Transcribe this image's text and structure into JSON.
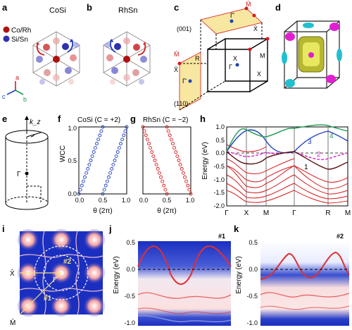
{
  "figure": {
    "panels": {
      "a": {
        "letter": "a",
        "material": "CoSi",
        "legend": [
          "Co/Rh",
          "Si/Sn"
        ],
        "axes": [
          "a",
          "b",
          "c"
        ]
      },
      "b": {
        "letter": "b",
        "material": "RhSn"
      },
      "c": {
        "letter": "c",
        "surface_top": "(001)",
        "surface_side": "(110)",
        "points_top": [
          "Γ̄",
          "X̄",
          "M̄"
        ],
        "points_side": [
          "M̄",
          "X̄",
          "Γ̄"
        ],
        "points_bulk": [
          "R",
          "X",
          "M",
          "X",
          "Γ"
        ]
      },
      "d": {
        "letter": "d"
      },
      "e": {
        "letter": "e",
        "axis_label": "k_z",
        "point": "Γ"
      },
      "f": {
        "letter": "f",
        "title": "CoSi (C = +2)",
        "ylabel": "WCC",
        "xlabel": "θ (2π)",
        "yticks": [
          "1.0",
          "0.5",
          "0.0"
        ],
        "xticks": [
          "0.0",
          "0.5",
          "1.0"
        ]
      },
      "g": {
        "letter": "g",
        "title": "RhSn (C = −2)",
        "xlabel": "θ (2π)",
        "xticks": [
          "0.0",
          "0.5",
          "1.0"
        ]
      },
      "h": {
        "letter": "h",
        "ylabel": "Energy (eV)",
        "yticks": [
          "1.0",
          "0.5",
          "0.0",
          "-0.5",
          "-1.0",
          "-1.5",
          "-2.0"
        ],
        "kpoints": [
          "Γ",
          "X",
          "M",
          "Γ",
          "R",
          "M"
        ],
        "band_labels": [
          "1",
          "2",
          "3",
          "4"
        ]
      },
      "i": {
        "letter": "i",
        "points": [
          "Γ̄",
          "X̄",
          "M̄"
        ],
        "markers": [
          "#1",
          "#2"
        ]
      },
      "j": {
        "letter": "j",
        "marker": "#1",
        "ylabel": "Energy (eV)",
        "yticks": [
          "0.5",
          "0.0",
          "-0.5",
          "-1.0"
        ]
      },
      "k": {
        "letter": "k",
        "marker": "#2",
        "ylabel": "Energy (eV)",
        "yticks": [
          "0.5",
          "0.0",
          "-0.5",
          "-1.0"
        ]
      }
    },
    "colors": {
      "red": "#d7191c",
      "blue": "#1f3fbf",
      "magenta": "#e020d0",
      "green": "#1a9a50",
      "brown": "#5a1010",
      "yellow": "#f8e7a0"
    }
  },
  "chart_data": [
    {
      "type": "scatter",
      "panel": "f",
      "title": "CoSi (C = +2)",
      "ylabel": "WCC",
      "xlabel": "θ (2π)",
      "xlim": [
        0,
        1
      ],
      "ylim": [
        0,
        1
      ],
      "series": [
        {
          "x": [
            0.0,
            0.5
          ],
          "y": [
            0.0,
            1.0
          ]
        },
        {
          "x": [
            0.5,
            1.0
          ],
          "y": [
            0.0,
            1.0
          ]
        }
      ]
    },
    {
      "type": "scatter",
      "panel": "g",
      "title": "RhSn (C = −2)",
      "xlabel": "θ (2π)",
      "xlim": [
        0,
        1
      ],
      "ylim": [
        0,
        1
      ],
      "series": [
        {
          "x": [
            0.0,
            0.5
          ],
          "y": [
            1.0,
            0.0
          ]
        },
        {
          "x": [
            0.5,
            1.0
          ],
          "y": [
            1.0,
            0.0
          ]
        }
      ]
    },
    {
      "type": "line",
      "panel": "h",
      "ylabel": "Energy (eV)",
      "ylim": [
        -2.0,
        1.0
      ],
      "categories": [
        "Γ",
        "X",
        "M",
        "Γ",
        "R",
        "M"
      ]
    }
  ]
}
